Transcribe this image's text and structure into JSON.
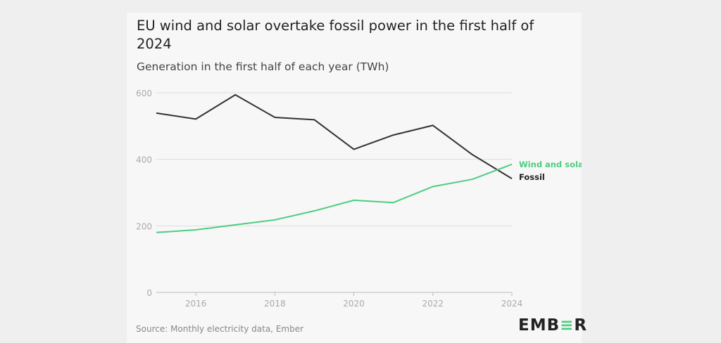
{
  "chart_data": {
    "type": "line",
    "title": "EU wind and solar overtake fossil power in the first half of 2024",
    "subtitle": "Generation in the first half of each year (TWh)",
    "x": [
      2015,
      2016,
      2017,
      2018,
      2019,
      2020,
      2021,
      2022,
      2023,
      2024
    ],
    "x_ticks": [
      "2016",
      "2018",
      "2020",
      "2022",
      "2024"
    ],
    "y_ticks": [
      "0",
      "200",
      "400",
      "600"
    ],
    "ylim": [
      0,
      600
    ],
    "xlim": [
      2015,
      2024
    ],
    "grid": "horizontal",
    "series": [
      {
        "name": "Fossil",
        "color": "#333333",
        "values": [
          539,
          521,
          594,
          526,
          519,
          430,
          473,
          502,
          414,
          342
        ]
      },
      {
        "name": "Wind and solar",
        "color": "#4ccd82",
        "values": [
          180,
          188,
          203,
          218,
          245,
          277,
          270,
          318,
          340,
          385
        ]
      }
    ],
    "source": "Source: Monthly electricity data, Ember"
  },
  "brand": {
    "logo": "EMBER"
  }
}
